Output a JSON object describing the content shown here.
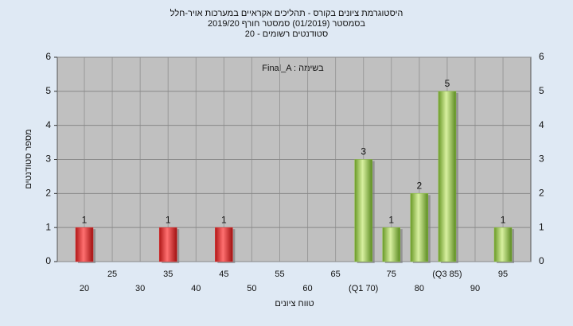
{
  "chart_data": {
    "type": "bar",
    "title": "היסטוגרמת ציונים בקורס - תהליכים אקראיים במערכות אויר-חלל",
    "subtitle": "בסמסטר (01/2019) סמסטר חורף 2019/20",
    "subtitle2": "סטודנטים רשומים - 20",
    "annotation": "Final_A : בשימה",
    "x_label": "טווח ציונים",
    "y_label": "מספר סטודנטים",
    "categories": [
      "20",
      "25",
      "30",
      "35",
      "40",
      "45",
      "50",
      "55",
      "60",
      "65",
      "(Q1 70)",
      "75",
      "80",
      "(Q3 85)",
      "90",
      "95"
    ],
    "values": [
      1,
      0,
      0,
      1,
      0,
      1,
      0,
      0,
      0,
      0,
      3,
      1,
      2,
      5,
      0,
      1
    ],
    "colors": [
      "#e03030",
      "#e03030",
      "#e03030",
      "#e03030",
      "#e03030",
      "#e03030",
      "#e03030",
      "#e03030",
      "#8cc040",
      "#8cc040",
      "#8cc040",
      "#8cc040",
      "#8cc040",
      "#8cc040",
      "#8cc040",
      "#8cc040"
    ],
    "ylim": [
      0,
      6
    ],
    "yticks": [
      0,
      1,
      2,
      3,
      4,
      5,
      6
    ],
    "grid": true
  }
}
